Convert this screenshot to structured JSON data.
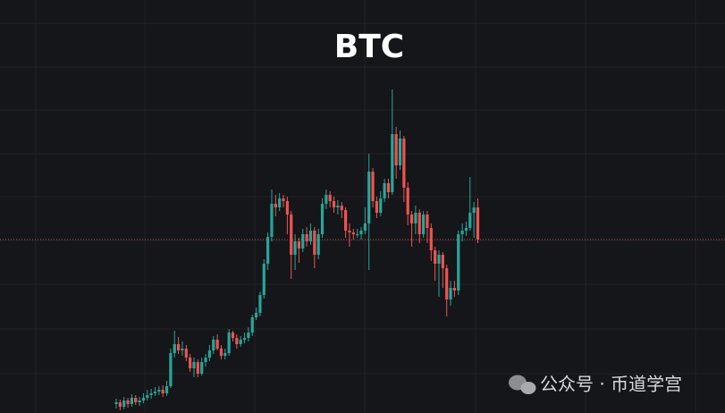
{
  "chart_data": {
    "type": "candlestick",
    "title": "BTC",
    "annotation": "公众号 · 币道学宫",
    "up_color": "#26a69a",
    "down_color": "#ef5350",
    "ylim": [
      0,
      462
    ],
    "open": [
      10,
      12,
      7,
      14,
      10,
      17,
      12,
      14,
      17,
      20,
      22,
      24,
      26,
      22,
      30,
      67,
      77,
      70,
      72,
      62,
      50,
      57,
      44,
      57,
      62,
      70,
      82,
      72,
      64,
      67,
      90,
      84,
      77,
      82,
      84,
      90,
      107,
      112,
      132,
      167,
      197,
      234,
      230,
      240,
      237,
      222,
      177,
      192,
      184,
      200,
      192,
      204,
      177,
      200,
      234,
      244,
      237,
      230,
      232,
      227,
      204,
      202,
      200,
      200,
      204,
      212,
      270,
      237,
      224,
      240,
      257,
      247,
      312,
      277,
      307,
      252,
      222,
      212,
      224,
      200,
      222,
      207,
      182,
      167,
      177,
      162,
      127,
      140,
      137,
      200,
      204,
      207,
      224,
      230
    ],
    "high": [
      16,
      15,
      18,
      17,
      21,
      20,
      18,
      22,
      26,
      27,
      29,
      30,
      31,
      36,
      72,
      92,
      85,
      80,
      76,
      66,
      62,
      60,
      62,
      66,
      76,
      86,
      88,
      76,
      72,
      94,
      92,
      88,
      86,
      90,
      96,
      110,
      118,
      136,
      172,
      202,
      250,
      244,
      246,
      244,
      242,
      226,
      200,
      196,
      206,
      208,
      212,
      208,
      206,
      240,
      250,
      248,
      242,
      238,
      236,
      230,
      212,
      206,
      206,
      208,
      230,
      290,
      274,
      242,
      248,
      262,
      262,
      362,
      320,
      316,
      310,
      258,
      226,
      232,
      228,
      226,
      226,
      212,
      186,
      182,
      180,
      166,
      148,
      148,
      204,
      212,
      214,
      264,
      236,
      240
    ],
    "low": [
      5,
      3,
      4,
      6,
      7,
      9,
      8,
      11,
      14,
      16,
      19,
      20,
      18,
      19,
      28,
      62,
      66,
      64,
      58,
      46,
      40,
      40,
      42,
      52,
      58,
      66,
      70,
      60,
      60,
      64,
      80,
      72,
      74,
      78,
      80,
      86,
      104,
      108,
      128,
      160,
      192,
      220,
      226,
      230,
      200,
      150,
      160,
      168,
      180,
      186,
      188,
      162,
      172,
      196,
      228,
      230,
      224,
      222,
      218,
      196,
      186,
      194,
      196,
      194,
      200,
      160,
      230,
      218,
      220,
      236,
      240,
      244,
      262,
      272,
      236,
      210,
      186,
      200,
      190,
      196,
      190,
      170,
      148,
      130,
      140,
      108,
      120,
      130,
      132,
      192,
      198,
      204,
      196,
      190
    ],
    "close": [
      12,
      7,
      14,
      10,
      17,
      12,
      14,
      17,
      20,
      22,
      24,
      26,
      22,
      30,
      67,
      77,
      70,
      72,
      62,
      50,
      57,
      44,
      57,
      62,
      70,
      82,
      72,
      64,
      67,
      90,
      84,
      77,
      82,
      84,
      90,
      107,
      112,
      132,
      167,
      197,
      234,
      230,
      240,
      237,
      222,
      177,
      192,
      184,
      200,
      192,
      204,
      177,
      200,
      234,
      244,
      237,
      230,
      232,
      227,
      204,
      202,
      200,
      200,
      204,
      212,
      270,
      237,
      224,
      240,
      257,
      247,
      312,
      277,
      307,
      252,
      222,
      212,
      224,
      200,
      222,
      207,
      182,
      167,
      177,
      162,
      127,
      140,
      137,
      200,
      204,
      207,
      224,
      230,
      194
    ]
  }
}
